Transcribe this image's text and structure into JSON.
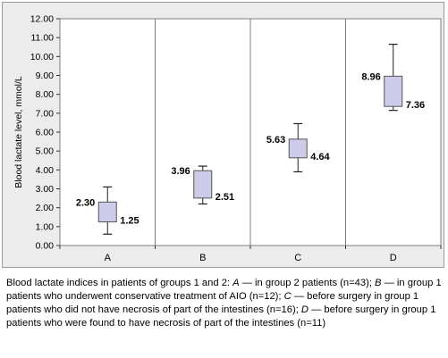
{
  "chart_data": {
    "type": "box",
    "ylabel": "Blood lactate level, mmol/L",
    "xlabel": "",
    "ylim": [
      0,
      12
    ],
    "ytick_step": 1,
    "ytick_labels": [
      "0.00",
      "1.00",
      "2.00",
      "3.00",
      "4.00",
      "5.00",
      "6.00",
      "7.00",
      "8.00",
      "9.00",
      "10.00",
      "11.00",
      "12.00"
    ],
    "grid": "vertical-category-lines",
    "categories": [
      "A",
      "B",
      "C",
      "D"
    ],
    "boxes": [
      {
        "category": "A",
        "whisker_high": 3.1,
        "upper": 2.3,
        "lower": 1.25,
        "whisker_low": 0.6,
        "upper_label": "2.30",
        "lower_label": "1.25"
      },
      {
        "category": "B",
        "whisker_high": 4.2,
        "upper": 3.96,
        "lower": 2.51,
        "whisker_low": 2.2,
        "upper_label": "3.96",
        "lower_label": "2.51"
      },
      {
        "category": "C",
        "whisker_high": 6.45,
        "upper": 5.63,
        "lower": 4.64,
        "whisker_low": 3.9,
        "upper_label": "5.63",
        "lower_label": "4.64"
      },
      {
        "category": "D",
        "whisker_high": 10.65,
        "upper": 8.96,
        "lower": 7.36,
        "whisker_low": 7.15,
        "upper_label": "8.96",
        "lower_label": "7.36"
      }
    ],
    "colors": {
      "box_fill": "#ccccea",
      "box_stroke": "#555555",
      "plot_bg": "#ffffff",
      "frame_bg": "#ececec",
      "grid": "#7f7f7f"
    }
  },
  "caption": {
    "intro": "Blood lactate indices in patients of groups 1 and 2: ",
    "a_letter": "A",
    "a_text": " — in group 2 patients (n=43); ",
    "b_letter": "B",
    "b_text": " — in group 1 patients who underwent conservative treatment of AIO (n=12); ",
    "c_letter": "C",
    "c_text": " — before surgery in group 1 patients who did not have necrosis of part of the intestines (n=16); ",
    "d_letter": "D",
    "d_text": " — before surgery in group 1 patients who were found to have necrosis of part of the intestines (n=11)"
  }
}
